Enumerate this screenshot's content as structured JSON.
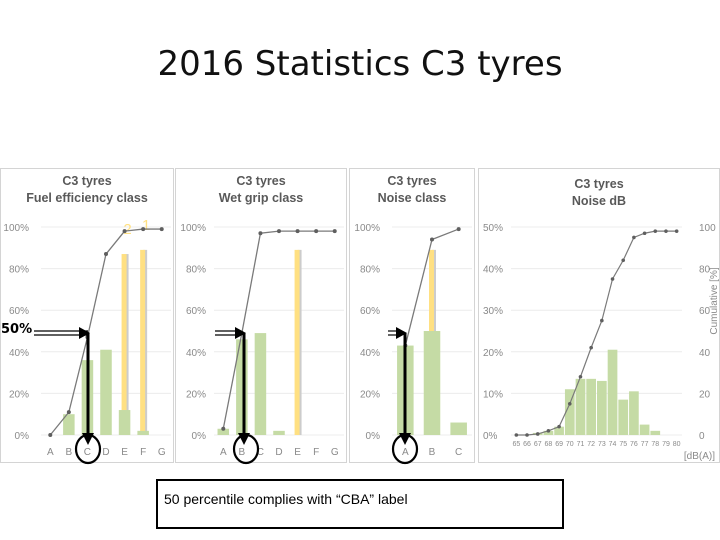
{
  "slide": {
    "title": "2016 Statistics C3 tyres",
    "percentile_label": "50%",
    "callout_text": "50 percentile complies with “CBA” label",
    "bar_color": "#c5dba5",
    "highlight_color": "#ffe082",
    "line_color": "#7a7a7a"
  },
  "chart_data": [
    {
      "type": "bar",
      "title": "C3 tyres\nFuel efficiency class",
      "categories": [
        "A",
        "B",
        "C",
        "D",
        "E",
        "F",
        "G"
      ],
      "values": [
        0,
        10,
        36,
        41,
        12,
        2,
        0
      ],
      "highlight_values": [
        0,
        0,
        0,
        0,
        87,
        89,
        0
      ],
      "highlight_labels": [
        "",
        "",
        "",
        "",
        "2",
        "1",
        ""
      ],
      "cumulative": [
        0,
        11,
        47,
        87,
        98,
        99,
        99
      ],
      "yticks": [
        "0%",
        "20%",
        "40%",
        "60%",
        "80%",
        "100%"
      ],
      "ylim": [
        0,
        100
      ],
      "selected_category": "C"
    },
    {
      "type": "bar",
      "title": "C3 tyres\nWet grip class",
      "categories": [
        "A",
        "B",
        "C",
        "D",
        "E",
        "F",
        "G"
      ],
      "values": [
        3,
        46,
        49,
        2,
        0,
        0,
        0
      ],
      "highlight_values": [
        0,
        0,
        0,
        0,
        89,
        0,
        0
      ],
      "cumulative": [
        3,
        49,
        97,
        98,
        98,
        98,
        98
      ],
      "yticks": [
        "0%",
        "20%",
        "40%",
        "60%",
        "80%",
        "100%"
      ],
      "ylim": [
        0,
        100
      ],
      "selected_category": "B"
    },
    {
      "type": "bar",
      "title": "C3 tyres\nNoise class",
      "categories": [
        "A",
        "B",
        "C"
      ],
      "values": [
        43,
        50,
        6
      ],
      "highlight_values": [
        0,
        89,
        0
      ],
      "cumulative": [
        43,
        94,
        99
      ],
      "yticks": [
        "0%",
        "20%",
        "40%",
        "60%",
        "80%",
        "100%"
      ],
      "ylim": [
        0,
        100
      ],
      "selected_category": "A"
    },
    {
      "type": "bar",
      "title": "C3 tyres\nNoise dB",
      "categories": [
        "65",
        "66",
        "67",
        "68",
        "69",
        "70",
        "71",
        "72",
        "73",
        "74",
        "75",
        "76",
        "77",
        "78",
        "79",
        "80"
      ],
      "values": [
        0,
        0,
        0.5,
        1,
        2,
        11,
        13.5,
        13.5,
        13,
        20.5,
        8.5,
        10.5,
        2.5,
        1,
        0,
        0
      ],
      "cumulative": [
        0,
        0,
        0.5,
        2,
        4,
        15,
        28,
        42,
        55,
        75,
        84,
        95,
        97,
        98,
        98,
        98
      ],
      "yticks_left": [
        "0%",
        "10%",
        "20%",
        "30%",
        "40%",
        "50%"
      ],
      "ylim_left": [
        0,
        50
      ],
      "yticks_right": [
        "0",
        "20",
        "40",
        "60",
        "80",
        "100"
      ],
      "ylim_right": [
        0,
        100
      ],
      "ylabel_right": "Cumulative [%]",
      "xlabel": "[dB(A)]"
    }
  ]
}
